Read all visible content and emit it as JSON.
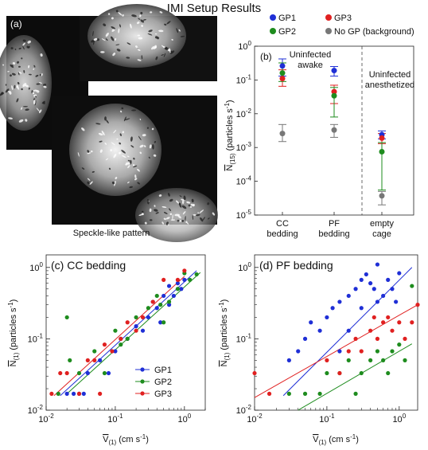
{
  "figure": {
    "title": "IMI Setup Results",
    "panel_a": {
      "label": "(a)",
      "caption": "Speckle-like pattern"
    }
  },
  "chart_data": [
    {
      "id": "b",
      "type": "scatter",
      "panel_label": "(b)",
      "ylabel_main": "N",
      "ylabel_sub": "(15)",
      "ylabel_units": "(particles s",
      "ylabel_exp": "-1",
      "ylabel_close": ")",
      "yscale": "log",
      "ylim": [
        1e-05,
        1
      ],
      "yticks": [
        {
          "value": 1e-05,
          "base": "10",
          "exp": "-5"
        },
        {
          "value": 0.0001,
          "base": "10",
          "exp": "-4"
        },
        {
          "value": 0.001,
          "base": "10",
          "exp": "-3"
        },
        {
          "value": 0.01,
          "base": "10",
          "exp": "-2"
        },
        {
          "value": 0.1,
          "base": "10",
          "exp": "-1"
        },
        {
          "value": 1,
          "base": "10",
          "exp": "0"
        }
      ],
      "categories": [
        {
          "line1": "CC",
          "line2": "bedding"
        },
        {
          "line1": "PF",
          "line2": "bedding"
        },
        {
          "line1": "empty",
          "line2": "cage"
        }
      ],
      "annotations": [
        {
          "line1": "Uninfected",
          "line2": "awake"
        },
        {
          "line1": "Uninfected",
          "line2": "anesthetized"
        }
      ],
      "legend": {
        "placement": "top",
        "entries": [
          "GP1",
          "GP3",
          "GP2",
          "No GP (background)"
        ]
      },
      "series": [
        {
          "name": "GP1",
          "color": "#1f2fd6",
          "points": [
            {
              "cat": 0,
              "y": 0.26,
              "lo": 0.13,
              "hi": 0.42
            },
            {
              "cat": 1,
              "y": 0.19,
              "lo": 0.13,
              "hi": 0.25
            },
            {
              "cat": 2,
              "y": 0.0024,
              "lo": 0.0018,
              "hi": 0.0031
            }
          ]
        },
        {
          "name": "GP3",
          "color": "#e02020",
          "points": [
            {
              "cat": 0,
              "y": 0.11,
              "lo": 0.065,
              "hi": 0.2
            },
            {
              "cat": 1,
              "y": 0.045,
              "lo": 0.02,
              "hi": 0.07
            },
            {
              "cat": 2,
              "y": 0.0019,
              "lo": 0.0013,
              "hi": 0.0026
            }
          ]
        },
        {
          "name": "GP2",
          "color": "#1e8c1e",
          "points": [
            {
              "cat": 0,
              "y": 0.16,
              "lo": 0.09,
              "hi": 0.32
            },
            {
              "cat": 1,
              "y": 0.034,
              "lo": 0.008,
              "hi": 0.06
            },
            {
              "cat": 2,
              "y": 0.00075,
              "lo": 5.5e-05,
              "hi": 0.0014
            }
          ]
        },
        {
          "name": "No GP (background)",
          "color": "#777777",
          "points": [
            {
              "cat": 0,
              "y": 0.0026,
              "lo": 0.0015,
              "hi": 0.0048
            },
            {
              "cat": 1,
              "y": 0.0033,
              "lo": 0.002,
              "hi": 0.0048
            },
            {
              "cat": 2,
              "y": 3.7e-05,
              "lo": 2e-05,
              "hi": 5e-05
            }
          ]
        }
      ]
    },
    {
      "id": "c",
      "type": "scatter",
      "title": "(c) CC bedding",
      "xscale": "log",
      "yscale": "log",
      "xlim": [
        0.01,
        2
      ],
      "ylim": [
        0.01,
        1.5
      ],
      "xlabel_main": "V",
      "xlabel_sub": "(1)",
      "xlabel_units": "(cm s",
      "xlabel_exp": "-1",
      "xlabel_close": ")",
      "ylabel_main": "N",
      "ylabel_sub": "(1)",
      "ylabel_units": "(particles s",
      "ylabel_exp": "-1",
      "ylabel_close": ")",
      "xticks": [
        {
          "value": 0.01,
          "base": "10",
          "exp": "-2"
        },
        {
          "value": 0.1,
          "base": "10",
          "exp": "-1"
        },
        {
          "value": 1,
          "base": "10",
          "exp": "0"
        }
      ],
      "yticks": [
        {
          "value": 0.01,
          "base": "10",
          "exp": "-2"
        },
        {
          "value": 0.1,
          "base": "10",
          "exp": "-1"
        },
        {
          "value": 1,
          "base": "10",
          "exp": "0"
        }
      ],
      "legend": {
        "placement": "bottom-right",
        "entries": [
          "GP1",
          "GP2",
          "GP3"
        ]
      },
      "series": [
        {
          "name": "GP1",
          "color": "#1f2fd6",
          "fit": [
            [
              0.016,
              0.016
            ],
            [
              1.5,
              0.9
            ]
          ],
          "points": [
            [
              0.02,
              0.017
            ],
            [
              0.025,
              0.017
            ],
            [
              0.03,
              0.017
            ],
            [
              0.035,
              0.017
            ],
            [
              0.04,
              0.033
            ],
            [
              0.06,
              0.05
            ],
            [
              0.08,
              0.033
            ],
            [
              0.1,
              0.067
            ],
            [
              0.12,
              0.1
            ],
            [
              0.15,
              0.1
            ],
            [
              0.2,
              0.15
            ],
            [
              0.25,
              0.13
            ],
            [
              0.3,
              0.2
            ],
            [
              0.35,
              0.33
            ],
            [
              0.4,
              0.27
            ],
            [
              0.5,
              0.4
            ],
            [
              0.6,
              0.55
            ],
            [
              0.7,
              0.4
            ],
            [
              0.8,
              0.6
            ],
            [
              1.0,
              0.67
            ],
            [
              0.9,
              0.5
            ],
            [
              0.45,
              0.17
            ],
            [
              0.6,
              0.3
            ]
          ]
        },
        {
          "name": "GP2",
          "color": "#1e8c1e",
          "fit": [
            [
              0.02,
              0.017
            ],
            [
              1.7,
              0.85
            ]
          ],
          "points": [
            [
              0.015,
              0.017
            ],
            [
              0.02,
              0.2
            ],
            [
              0.022,
              0.05
            ],
            [
              0.03,
              0.033
            ],
            [
              0.05,
              0.067
            ],
            [
              0.07,
              0.033
            ],
            [
              0.1,
              0.13
            ],
            [
              0.12,
              0.083
            ],
            [
              0.2,
              0.2
            ],
            [
              0.3,
              0.27
            ],
            [
              0.4,
              0.4
            ],
            [
              0.5,
              0.17
            ],
            [
              0.6,
              0.33
            ],
            [
              0.8,
              0.5
            ],
            [
              1.0,
              0.83
            ],
            [
              1.2,
              0.67
            ],
            [
              1.5,
              0.8
            ],
            [
              0.15,
              0.1
            ],
            [
              0.45,
              0.3
            ]
          ]
        },
        {
          "name": "GP3",
          "color": "#e02020",
          "fit": [
            [
              0.013,
              0.016
            ],
            [
              1.0,
              0.75
            ]
          ],
          "points": [
            [
              0.012,
              0.017
            ],
            [
              0.016,
              0.033
            ],
            [
              0.02,
              0.033
            ],
            [
              0.03,
              0.017
            ],
            [
              0.04,
              0.05
            ],
            [
              0.05,
              0.05
            ],
            [
              0.07,
              0.083
            ],
            [
              0.09,
              0.067
            ],
            [
              0.12,
              0.1
            ],
            [
              0.2,
              0.13
            ],
            [
              0.25,
              0.2
            ],
            [
              0.35,
              0.33
            ],
            [
              0.5,
              0.67
            ],
            [
              0.8,
              0.67
            ],
            [
              1.0,
              0.9
            ],
            [
              0.06,
              0.017
            ],
            [
              0.15,
              0.17
            ]
          ]
        }
      ]
    },
    {
      "id": "d",
      "type": "scatter",
      "title": "(d) PF bedding",
      "xscale": "log",
      "yscale": "log",
      "xlim": [
        0.01,
        1.8
      ],
      "ylim": [
        0.01,
        1.5
      ],
      "xlabel_main": "V",
      "xlabel_sub": "(1)",
      "xlabel_units": "(cm s",
      "xlabel_exp": "-1",
      "xlabel_close": ")",
      "ylabel_main": "N",
      "ylabel_sub": "(1)",
      "ylabel_units": "(particles s",
      "ylabel_exp": "-1",
      "ylabel_close": ")",
      "xticks": [
        {
          "value": 0.01,
          "base": "10",
          "exp": "-2"
        },
        {
          "value": 0.1,
          "base": "10",
          "exp": "-1"
        },
        {
          "value": 1,
          "base": "10",
          "exp": "0"
        }
      ],
      "yticks": [
        {
          "value": 0.01,
          "base": "10",
          "exp": "-2"
        },
        {
          "value": 0.1,
          "base": "10",
          "exp": "-1"
        },
        {
          "value": 1,
          "base": "10",
          "exp": "0"
        }
      ],
      "series": [
        {
          "name": "GP1",
          "color": "#1f2fd6",
          "fit": [
            [
              0.025,
              0.016
            ],
            [
              1.5,
              1.0
            ]
          ],
          "points": [
            [
              0.03,
              0.05
            ],
            [
              0.04,
              0.067
            ],
            [
              0.05,
              0.1
            ],
            [
              0.06,
              0.17
            ],
            [
              0.08,
              0.13
            ],
            [
              0.1,
              0.2
            ],
            [
              0.12,
              0.27
            ],
            [
              0.15,
              0.33
            ],
            [
              0.2,
              0.4
            ],
            [
              0.25,
              0.5
            ],
            [
              0.3,
              0.67
            ],
            [
              0.35,
              0.8
            ],
            [
              0.4,
              0.6
            ],
            [
              0.45,
              0.5
            ],
            [
              0.5,
              1.1
            ],
            [
              0.6,
              0.4
            ],
            [
              0.7,
              0.67
            ],
            [
              0.8,
              0.5
            ],
            [
              1.0,
              0.83
            ],
            [
              0.3,
              0.27
            ],
            [
              0.2,
              0.13
            ],
            [
              0.15,
              0.067
            ],
            [
              0.5,
              0.33
            ],
            [
              0.9,
              0.33
            ]
          ]
        },
        {
          "name": "GP2",
          "color": "#1e8c1e",
          "fit": [
            [
              0.04,
              0.01
            ],
            [
              1.5,
              0.085
            ]
          ],
          "points": [
            [
              0.03,
              0.017
            ],
            [
              0.05,
              0.017
            ],
            [
              0.08,
              0.017
            ],
            [
              0.1,
              0.033
            ],
            [
              0.15,
              0.033
            ],
            [
              0.2,
              0.05
            ],
            [
              0.3,
              0.033
            ],
            [
              0.4,
              0.05
            ],
            [
              0.5,
              0.067
            ],
            [
              0.6,
              0.05
            ],
            [
              0.8,
              0.067
            ],
            [
              1.0,
              0.083
            ],
            [
              1.2,
              0.05
            ],
            [
              1.5,
              0.55
            ],
            [
              0.25,
              0.017
            ],
            [
              0.7,
              0.033
            ]
          ]
        },
        {
          "name": "GP3",
          "color": "#e02020",
          "fit": [
            [
              0.01,
              0.015
            ],
            [
              1.8,
              0.3
            ]
          ],
          "points": [
            [
              0.01,
              0.033
            ],
            [
              0.016,
              0.017
            ],
            [
              0.1,
              0.05
            ],
            [
              0.15,
              0.033
            ],
            [
              0.2,
              0.067
            ],
            [
              0.25,
              0.1
            ],
            [
              0.3,
              0.067
            ],
            [
              0.4,
              0.13
            ],
            [
              0.5,
              0.1
            ],
            [
              0.6,
              0.17
            ],
            [
              0.7,
              0.2
            ],
            [
              0.8,
              0.13
            ],
            [
              1.0,
              0.17
            ],
            [
              1.2,
              0.1
            ],
            [
              1.5,
              0.17
            ],
            [
              1.8,
              0.3
            ],
            [
              0.45,
              0.2
            ]
          ]
        }
      ]
    }
  ]
}
